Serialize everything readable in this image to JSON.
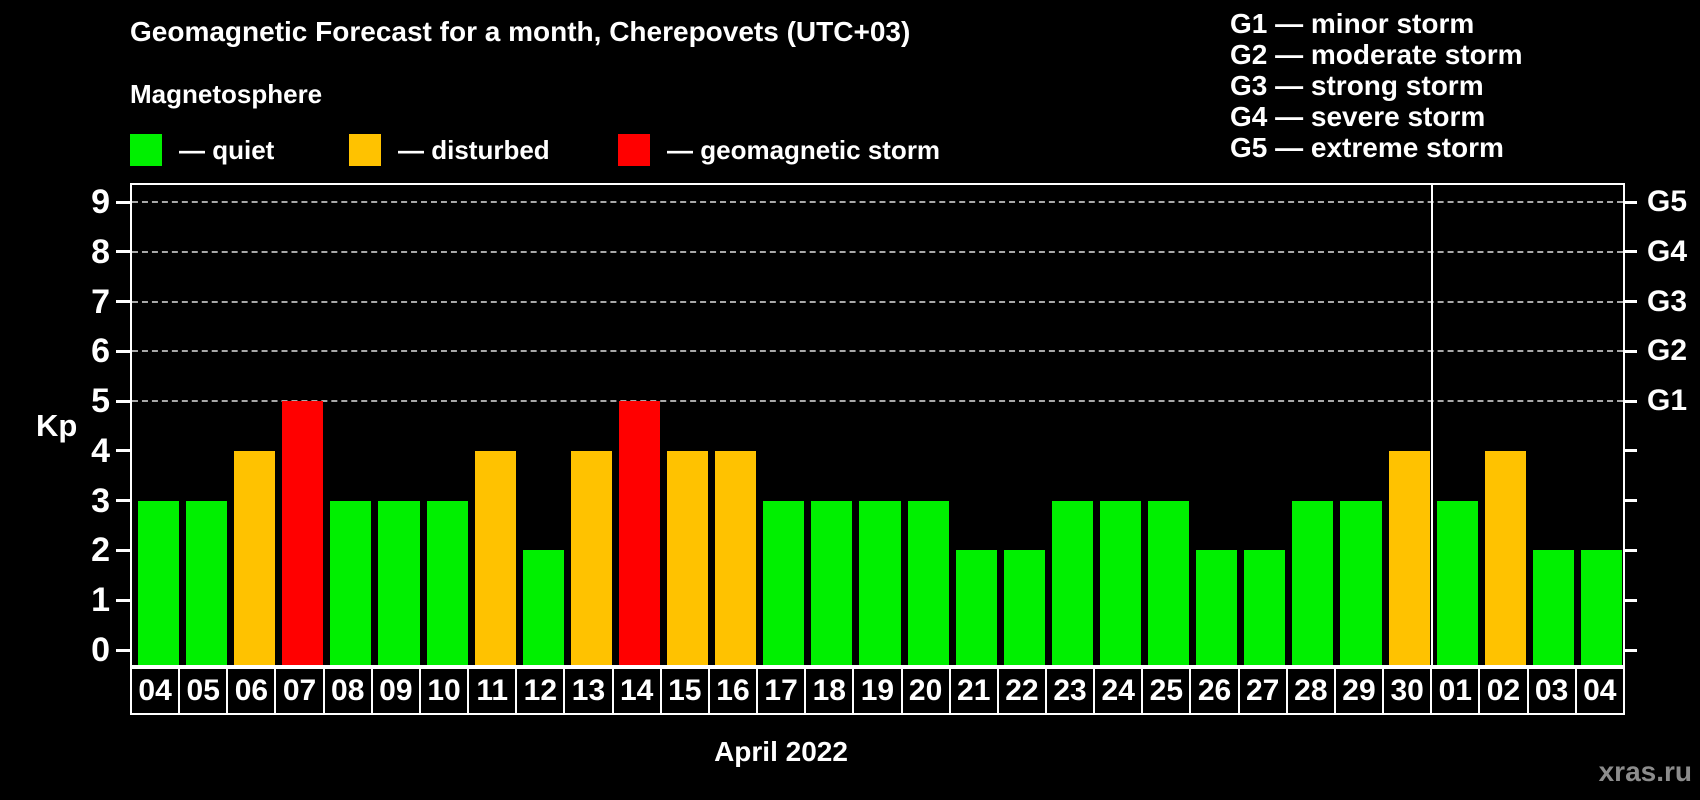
{
  "header": {
    "title": "Geomagnetic Forecast for a month, Cherepovets (UTC+03)",
    "subtitle": "Magnetosphere"
  },
  "legend": {
    "items": [
      {
        "label": "— quiet",
        "color": "#00f000"
      },
      {
        "label": "— disturbed",
        "color": "#ffc200"
      },
      {
        "label": "— geomagnetic storm",
        "color": "#ff0000"
      }
    ]
  },
  "g_scale": [
    "G1 — minor storm",
    "G2 — moderate storm",
    "G3 — strong storm",
    "G4 — severe storm",
    "G5 — extreme storm"
  ],
  "chart_data": {
    "type": "bar",
    "title": "Geomagnetic Forecast for a month, Cherepovets (UTC+03)",
    "ylabel": "Kp",
    "xlabel": "April 2022",
    "ylim": [
      0,
      9.4
    ],
    "y_ticks": [
      0,
      1,
      2,
      3,
      4,
      5,
      6,
      7,
      8,
      9
    ],
    "gridlines_at": [
      5,
      6,
      7,
      8,
      9
    ],
    "grid_style": "dashed",
    "legend_position": "top-left",
    "right_axis": [
      {
        "label": "G1",
        "value": 5
      },
      {
        "label": "G2",
        "value": 6
      },
      {
        "label": "G3",
        "value": 7
      },
      {
        "label": "G4",
        "value": 8
      },
      {
        "label": "G5",
        "value": 9
      }
    ],
    "categories": [
      "04",
      "05",
      "06",
      "07",
      "08",
      "09",
      "10",
      "11",
      "12",
      "13",
      "14",
      "15",
      "16",
      "17",
      "18",
      "19",
      "20",
      "21",
      "22",
      "23",
      "24",
      "25",
      "26",
      "27",
      "28",
      "29",
      "30",
      "01",
      "02",
      "03",
      "04"
    ],
    "values": [
      3,
      3,
      4,
      5,
      3,
      3,
      3,
      4,
      2,
      4,
      5,
      4,
      4,
      3,
      3,
      3,
      3,
      2,
      2,
      3,
      3,
      3,
      2,
      2,
      3,
      3,
      4,
      3,
      4,
      2,
      2
    ],
    "month_separator_after_index": 26,
    "color_rule": {
      "quiet_max": 3,
      "disturbed_value": 4,
      "storm_min": 5
    }
  },
  "watermark": "xras.ru",
  "colors": {
    "background": "#000000",
    "axis": "#ffffff",
    "grid": "#a8a8a8",
    "quiet": "#00f000",
    "disturbed": "#ffc200",
    "storm": "#ff0000",
    "watermark": "#8c8c8c"
  }
}
